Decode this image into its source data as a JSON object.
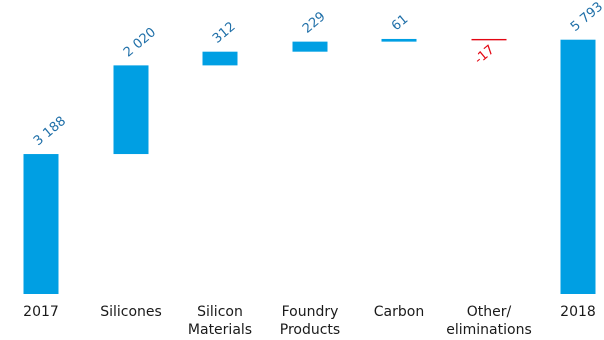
{
  "chart_data": {
    "type": "waterfall",
    "title": "",
    "xlabel": "",
    "ylabel": "",
    "grid": false,
    "legend": "none",
    "colors": {
      "bar": "#009fe3",
      "negative": "#e30613",
      "positive_label": "#1f6fa8",
      "negative_label": "#e30613"
    },
    "ylim": [
      0,
      5900
    ],
    "bars": [
      {
        "category_lines": [
          "2017"
        ],
        "label": "3 188",
        "value": 3188,
        "kind": "total"
      },
      {
        "category_lines": [
          "Silicones"
        ],
        "label": "2 020",
        "value": 2020,
        "kind": "delta"
      },
      {
        "category_lines": [
          "Silicon",
          "Materials"
        ],
        "label": "312",
        "value": 312,
        "kind": "delta"
      },
      {
        "category_lines": [
          "Foundry",
          "Products"
        ],
        "label": "229",
        "value": 229,
        "kind": "delta"
      },
      {
        "category_lines": [
          "Carbon"
        ],
        "label": "61",
        "value": 61,
        "kind": "delta"
      },
      {
        "category_lines": [
          "Other/",
          "eliminations"
        ],
        "label": "-17",
        "value": -17,
        "kind": "delta"
      },
      {
        "category_lines": [
          "2018"
        ],
        "label": "5 793",
        "value": 5793,
        "kind": "total"
      }
    ]
  }
}
